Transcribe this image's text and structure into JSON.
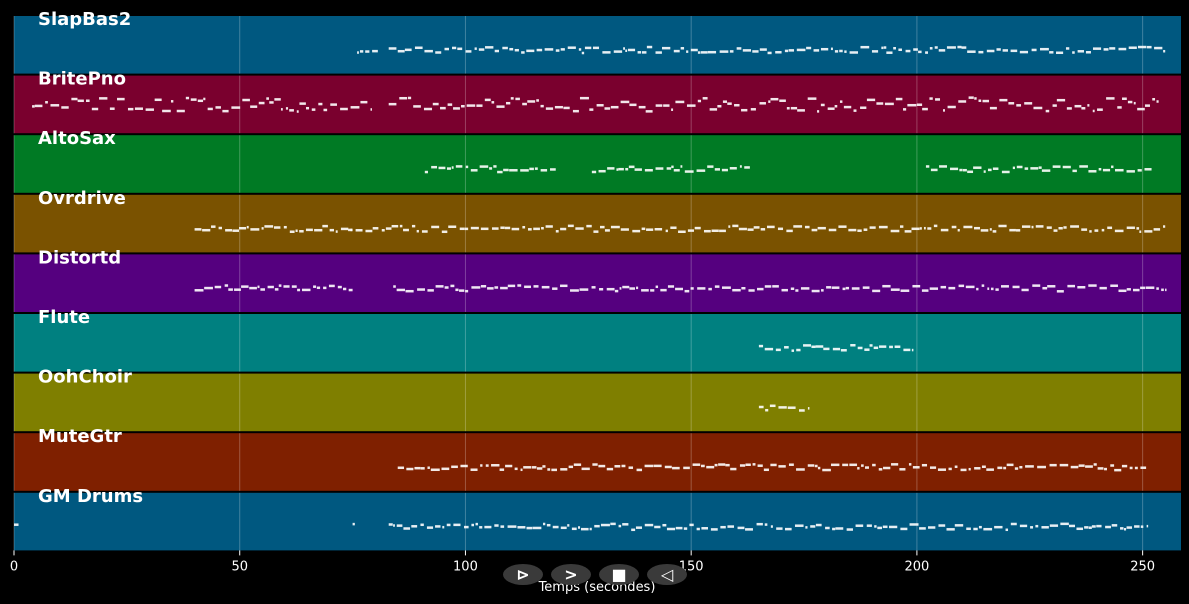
{
  "chart_data": {
    "type": "piano-roll",
    "xlabel": "Temps (secondes)",
    "xlim": [
      0,
      258.5
    ],
    "xticks": [
      0,
      50,
      100,
      150,
      200,
      250
    ],
    "grid": true,
    "tracks": [
      {
        "name": "SlapBas2",
        "color": "#005880",
        "active": [
          [
            76,
            81
          ],
          [
            83,
            255
          ]
        ]
      },
      {
        "name": "BritePno",
        "color": "#7a002e",
        "active": [
          [
            4,
            79
          ],
          [
            83,
            231
          ],
          [
            231,
            254
          ]
        ]
      },
      {
        "name": "AltoSax",
        "color": "#007a24",
        "active": [
          [
            91,
            120
          ],
          [
            128,
            163
          ],
          [
            202,
            252
          ]
        ]
      },
      {
        "name": "Ovrdrive",
        "color": "#7a5200",
        "active": [
          [
            40,
            75
          ],
          [
            74,
            255
          ]
        ]
      },
      {
        "name": "Distortd",
        "color": "#55007f",
        "active": [
          [
            40,
            75
          ],
          [
            84,
            255
          ]
        ]
      },
      {
        "name": "Flute",
        "color": "#008080",
        "active": [
          [
            165,
            199
          ]
        ]
      },
      {
        "name": "OohChoir",
        "color": "#7f7f00",
        "active": [
          [
            165,
            176
          ]
        ]
      },
      {
        "name": "MuteGtr",
        "color": "#7f2000",
        "active": [
          [
            85,
            251
          ]
        ]
      },
      {
        "name": "GM Drums",
        "color": "#005880",
        "active": [
          [
            0,
            1
          ],
          [
            75,
            75.5
          ],
          [
            83,
            251
          ]
        ]
      }
    ]
  },
  "controls": {
    "play_label": "⊳",
    "forward_label": ">",
    "stop_label": "■",
    "back_label": "◁"
  }
}
